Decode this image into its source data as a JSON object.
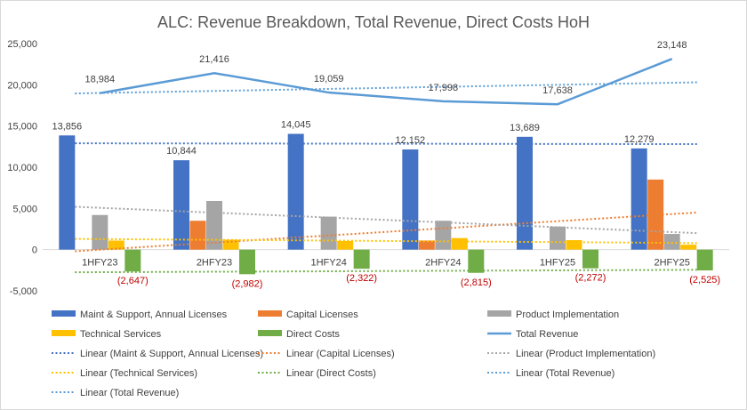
{
  "chart_data": {
    "type": "bar",
    "title": "ALC: Revenue Breakdown, Total Revenue, Direct Costs HoH",
    "categories": [
      "1HFY23",
      "2HFY23",
      "1HFY24",
      "2HFY24",
      "1HFY25",
      "2HFY25"
    ],
    "ylim": [
      -5000,
      25000
    ],
    "yticks": [
      "-5,000",
      "0",
      "5,000",
      "10,000",
      "15,000",
      "20,000",
      "25,000"
    ],
    "ytick_values": [
      -5000,
      0,
      5000,
      10000,
      15000,
      20000,
      25000
    ],
    "grid": false,
    "legend_position": "bottom",
    "series": [
      {
        "name": "Maint & Support, Annual Licenses",
        "kind": "bar",
        "color": "#4472c4",
        "values": [
          13856,
          10844,
          14045,
          12152,
          13689,
          12279
        ],
        "labels": [
          "13,856",
          "10,844",
          "14,045",
          "12,152",
          "13,689",
          "12,279"
        ]
      },
      {
        "name": "Capital Licenses",
        "kind": "bar",
        "color": "#ed7d31",
        "values": [
          0,
          3500,
          0,
          1100,
          0,
          8500
        ]
      },
      {
        "name": "Product Implementation",
        "kind": "bar",
        "color": "#a5a5a5",
        "values": [
          4200,
          5900,
          4000,
          3500,
          2800,
          1900
        ]
      },
      {
        "name": "Technical Services",
        "kind": "bar",
        "color": "#ffc000",
        "values": [
          1100,
          1200,
          1050,
          1400,
          1150,
          600
        ]
      },
      {
        "name": "Direct Costs",
        "kind": "bar",
        "color": "#70ad47",
        "values": [
          -2647,
          -2982,
          -2322,
          -2815,
          -2272,
          -2525
        ],
        "labels": [
          "(2,647)",
          "(2,982)",
          "(2,322)",
          "(2,815)",
          "(2,272)",
          "(2,525)"
        ]
      },
      {
        "name": "Total Revenue",
        "kind": "line",
        "color": "#5b9bd5",
        "values": [
          18984,
          21416,
          19059,
          17998,
          17638,
          23148
        ],
        "labels": [
          "18,984",
          "21,416",
          "19,059",
          "17,998",
          "17,638",
          "23,148"
        ]
      }
    ],
    "trendlines": [
      {
        "name": "Linear (Maint & Support, Annual Licenses)",
        "color": "#4472c4",
        "values": [
          12900,
          12800
        ]
      },
      {
        "name": "Linear (Capital Licenses)",
        "color": "#ed7d31",
        "values": [
          -200,
          4500
        ]
      },
      {
        "name": "Linear (Product Implementation)",
        "color": "#a5a5a5",
        "values": [
          5200,
          2000
        ]
      },
      {
        "name": "Linear (Technical Services)",
        "color": "#ffc000",
        "values": [
          1300,
          800
        ]
      },
      {
        "name": "Linear (Direct Costs)",
        "color": "#70ad47",
        "values": [
          -2750,
          -2450
        ]
      },
      {
        "name": "Linear (Total Revenue)",
        "color": "#5b9bd5",
        "values": [
          18950,
          20300
        ]
      },
      {
        "name": "Linear (Total Revenue)",
        "color": "#5b9bd5",
        "values": [
          18950,
          20300
        ]
      }
    ]
  }
}
